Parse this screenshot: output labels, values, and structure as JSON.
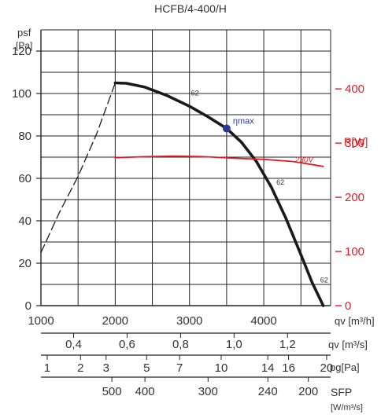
{
  "chart_data": {
    "type": "line",
    "title": "HCFB/4-400/H",
    "xlabel": "qv [m³/h]",
    "ylabel_lines": [
      "psf",
      "[Pa]"
    ],
    "y2label": "P[W]",
    "xlim": [
      1000,
      4900
    ],
    "ylim": [
      0,
      130
    ],
    "y2lim": [
      0,
      509
    ],
    "xticks": [
      1000,
      2000,
      3000,
      4000
    ],
    "yticks": [
      0,
      20,
      40,
      60,
      80,
      100,
      120
    ],
    "y2ticks": [
      0,
      100,
      200,
      300,
      400
    ],
    "grid": true,
    "series": [
      {
        "role": "pressure-curve",
        "x": [
          2000,
          2150,
          2400,
          2700,
          3000,
          3250,
          3500,
          3700,
          3900,
          4100,
          4300,
          4500,
          4650,
          4800
        ],
        "y": [
          105,
          104.8,
          103,
          99,
          94,
          89,
          83.5,
          77,
          68,
          56,
          41,
          24,
          11,
          0
        ],
        "color": "#1a1a1a"
      },
      {
        "role": "stall-region",
        "x": [
          1000,
          1250,
          1500,
          1750,
          2000
        ],
        "y": [
          25,
          44,
          61,
          81,
          105
        ],
        "color": "#1a1a1a",
        "dashed": true
      },
      {
        "name": "230V",
        "axis": "y2",
        "x": [
          2000,
          2400,
          2800,
          3200,
          3600,
          4000,
          4400,
          4800
        ],
        "y": [
          273,
          275,
          276,
          275,
          272,
          270,
          266,
          257
        ],
        "color": "#e31b23"
      }
    ],
    "curve_labels": [
      {
        "text": "62",
        "x": 3020,
        "y": 99
      },
      {
        "text": "62",
        "x": 4170,
        "y": 57
      },
      {
        "text": "62",
        "x": 4760,
        "y": 11
      }
    ],
    "markers": [
      {
        "name": "ηmax",
        "x": 3500,
        "y": 83.5,
        "color": "#2b3a9a"
      }
    ],
    "secondary_scales": [
      {
        "label": "qv [m³/s]",
        "ticks": [
          {
            "text": "0,4",
            "at": 1440
          },
          {
            "text": "0,6",
            "at": 2160
          },
          {
            "text": "0,8",
            "at": 2880
          },
          {
            "text": "1,0",
            "at": 3600
          },
          {
            "text": "1,2",
            "at": 4320
          }
        ]
      },
      {
        "label": "pg[Pa]",
        "ticks": [
          {
            "text": "1",
            "at": 1084
          },
          {
            "text": "2",
            "at": 1533
          },
          {
            "text": "3",
            "at": 1877
          },
          {
            "text": "5",
            "at": 2423
          },
          {
            "text": "7",
            "at": 2867
          },
          {
            "text": "10",
            "at": 3427
          },
          {
            "text": "14",
            "at": 4054
          },
          {
            "text": "16",
            "at": 4334
          },
          {
            "text": "20",
            "at": 4846
          }
        ]
      },
      {
        "label_lines": [
          "SFP",
          "[W/m³/s]"
        ],
        "ticks": [
          {
            "text": "500",
            "at": 1955
          },
          {
            "text": "400",
            "at": 2400
          },
          {
            "text": "300",
            "at": 3250
          },
          {
            "text": "240",
            "at": 4055
          },
          {
            "text": "200",
            "at": 4600
          }
        ]
      }
    ]
  }
}
